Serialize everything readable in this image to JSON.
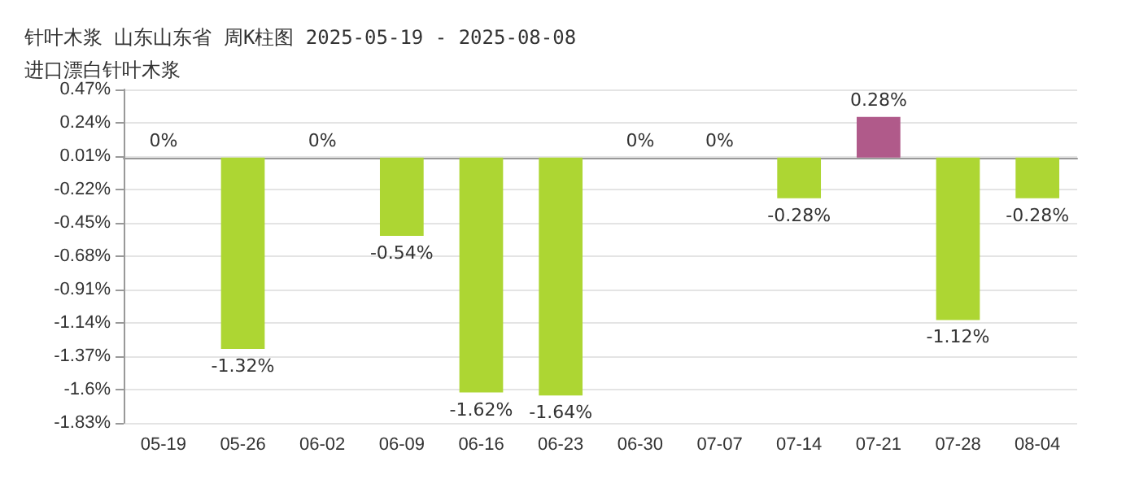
{
  "chart_data": {
    "type": "bar",
    "title": "针叶木浆 山东山东省 周K柱图 2025-05-19 - 2025-08-08",
    "subtitle": "进口漂白针叶木浆",
    "categories": [
      "05-19",
      "05-26",
      "06-02",
      "06-09",
      "06-16",
      "06-23",
      "06-30",
      "07-07",
      "07-14",
      "07-21",
      "07-28",
      "08-04"
    ],
    "values": [
      0,
      -1.32,
      0,
      -0.54,
      -1.62,
      -1.64,
      0,
      0,
      -0.28,
      0.28,
      -1.12,
      -0.28
    ],
    "colors": [
      "#add633",
      "#add633",
      "#add633",
      "#add633",
      "#add633",
      "#add633",
      "#add633",
      "#add633",
      "#add633",
      "#b05a8a",
      "#add633",
      "#add633"
    ],
    "value_labels": [
      "0%",
      "-1.32%",
      "0%",
      "-0.54%",
      "-1.62%",
      "-1.64%",
      "0%",
      "0%",
      "-0.28%",
      "0.28%",
      "-1.12%",
      "-0.28%"
    ],
    "ylim": [
      -1.83,
      0.47
    ],
    "yticks": [
      {
        "value": 0.47,
        "label": "0.47%"
      },
      {
        "value": 0.24,
        "label": "0.24%"
      },
      {
        "value": 0.01,
        "label": "0.01%"
      },
      {
        "value": -0.22,
        "label": "-0.22%"
      },
      {
        "value": -0.45,
        "label": "-0.45%"
      },
      {
        "value": -0.68,
        "label": "-0.68%"
      },
      {
        "value": -0.91,
        "label": "-0.91%"
      },
      {
        "value": -1.14,
        "label": "-1.14%"
      },
      {
        "value": -1.37,
        "label": "-1.37%"
      },
      {
        "value": -1.6,
        "label": "-1.6%"
      },
      {
        "value": -1.83,
        "label": "-1.83%"
      }
    ],
    "grid": "y"
  }
}
